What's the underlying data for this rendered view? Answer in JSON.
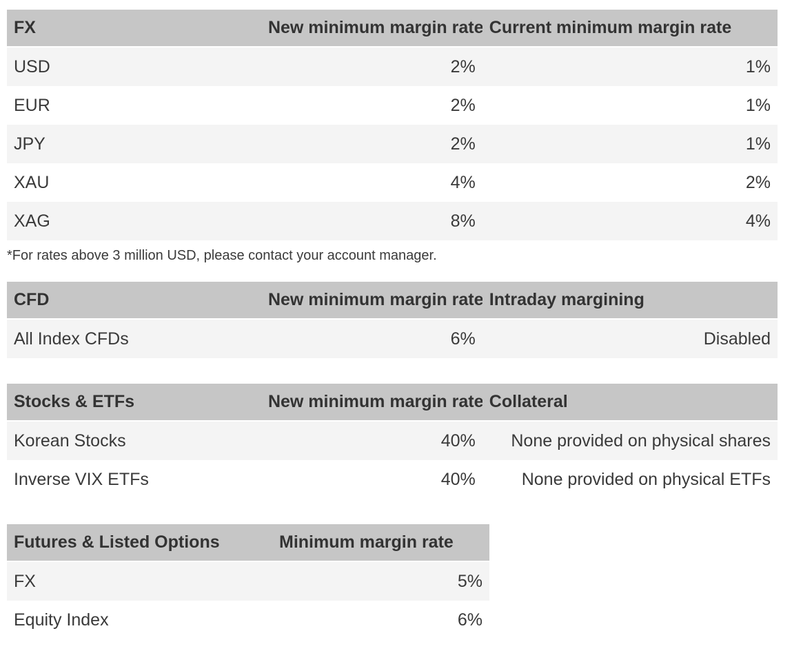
{
  "colors": {
    "header_bg": "#c6c6c6",
    "header_text": "#333333",
    "row_alt_bg": "#f4f4f4",
    "row_bg": "#ffffff",
    "text": "#3a3a3a"
  },
  "footnote": "*For rates above 3 million USD, please contact your account manager.",
  "tables": [
    {
      "name": "fx-margin-table",
      "columns": [
        {
          "label": "FX",
          "align": "left"
        },
        {
          "label": "New minimum margin rate*",
          "align": "right"
        },
        {
          "label": "Current minimum margin rate",
          "align": "right"
        }
      ],
      "rows": [
        [
          "USD",
          "2%",
          "1%"
        ],
        [
          "EUR",
          "2%",
          "1%"
        ],
        [
          "JPY",
          "2%",
          "1%"
        ],
        [
          "XAU",
          "4%",
          "2%"
        ],
        [
          "XAG",
          "8%",
          "4%"
        ]
      ]
    },
    {
      "name": "cfd-margin-table",
      "columns": [
        {
          "label": "CFD",
          "align": "left"
        },
        {
          "label": "New minimum margin rate",
          "align": "right"
        },
        {
          "label": "Intraday margining",
          "align": "right"
        }
      ],
      "rows": [
        [
          "All Index CFDs",
          "6%",
          "Disabled"
        ]
      ]
    },
    {
      "name": "stocks-etfs-margin-table",
      "columns": [
        {
          "label": "Stocks & ETFs",
          "align": "left"
        },
        {
          "label": "New minimum margin rate",
          "align": "right"
        },
        {
          "label": "Collateral",
          "align": "right"
        }
      ],
      "rows": [
        [
          "Korean Stocks",
          "40%",
          "None provided on physical shares"
        ],
        [
          "Inverse VIX ETFs",
          "40%",
          "None provided on physical ETFs"
        ]
      ]
    },
    {
      "name": "futures-options-margin-table",
      "columns": [
        {
          "label": "Futures & Listed Options",
          "align": "left"
        },
        {
          "label": "Minimum margin rate",
          "align": "right"
        }
      ],
      "rows": [
        [
          "FX",
          "5%"
        ],
        [
          "Equity Index",
          "6%"
        ]
      ]
    }
  ]
}
